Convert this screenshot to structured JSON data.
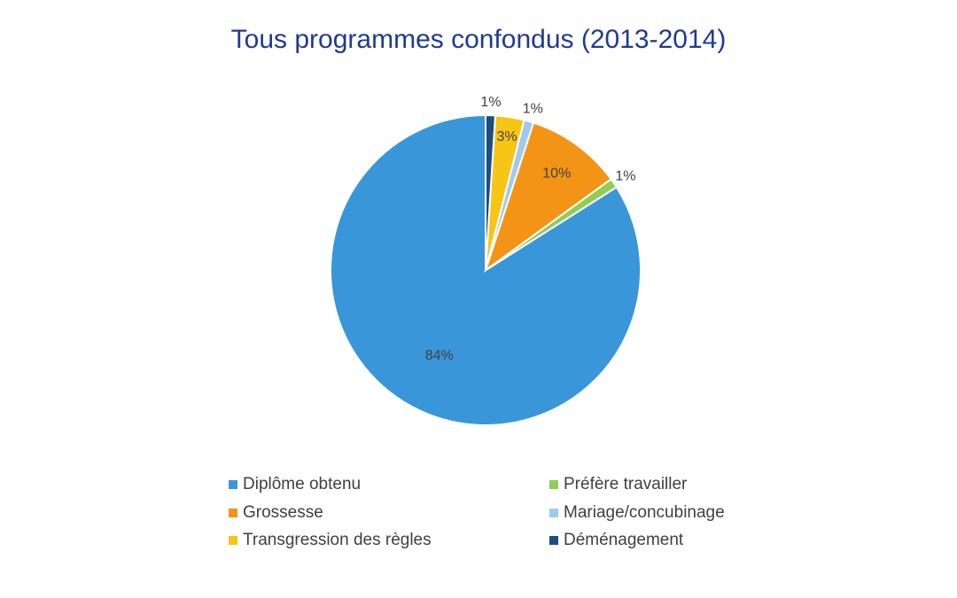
{
  "chart_data": {
    "type": "pie",
    "title": "Tous programmes confondus (2013-2014)",
    "start_angle_deg": 0,
    "direction": "counterclockwise",
    "slices": [
      {
        "label": "Diplôme obtenu",
        "value": 84,
        "display": "84%",
        "color": "#3896d9"
      },
      {
        "label": "Préfère travailler",
        "value": 1,
        "display": "1%",
        "color": "#92cc52"
      },
      {
        "label": "Grossesse",
        "value": 10,
        "display": "10%",
        "color": "#f39416"
      },
      {
        "label": "Mariage/concubinage",
        "value": 1,
        "display": "1%",
        "color": "#a2c8ee"
      },
      {
        "label": "Transgression des règles",
        "value": 3,
        "display": "3%",
        "color": "#f7c515"
      },
      {
        "label": "Déménagement",
        "value": 1,
        "display": "1%",
        "color": "#1d4e7e"
      }
    ],
    "legend": {
      "placement": "bottom",
      "order": [
        "Diplôme obtenu",
        "Préfère travailler",
        "Grossesse",
        "Mariage/concubinage",
        "Transgression des règles",
        "Déménagement"
      ]
    }
  }
}
